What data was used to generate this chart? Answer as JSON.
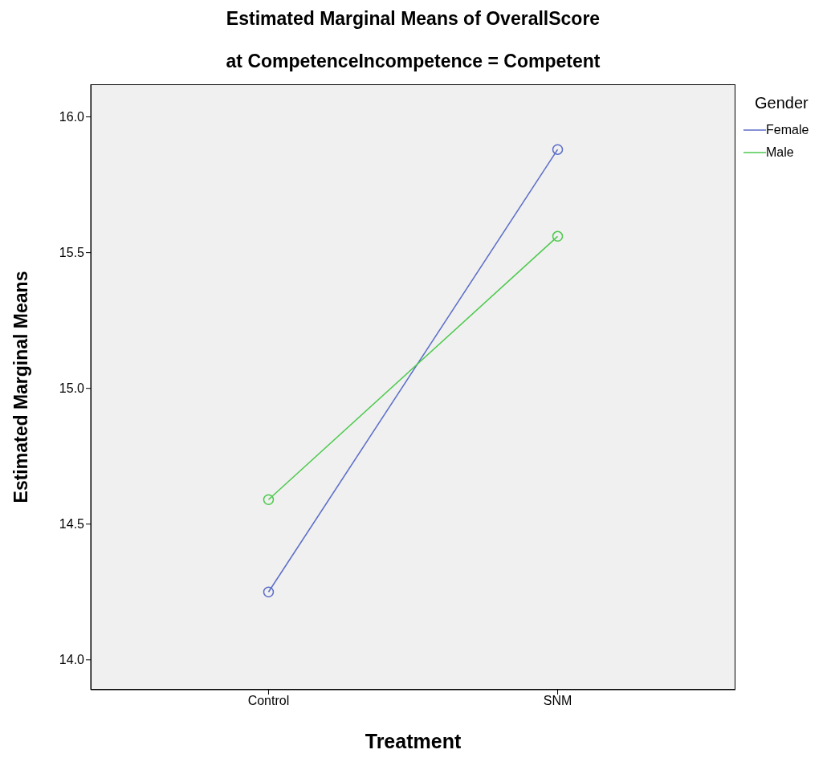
{
  "chart_data": {
    "type": "line",
    "title": "Estimated Marginal Means of OverallScore",
    "subtitle": "at CompetenceIncompetence = Competent",
    "xlabel": "Treatment",
    "ylabel": "Estimated Marginal Means",
    "legend_title": "Gender",
    "categories": [
      "Control",
      "SNM"
    ],
    "series": [
      {
        "name": "Female",
        "color": "#5b6dc8",
        "values": [
          14.25,
          15.88
        ]
      },
      {
        "name": "Male",
        "color": "#4cc94c",
        "values": [
          14.59,
          15.56
        ]
      }
    ],
    "ylim": [
      13.89,
      16.12
    ],
    "yticks": [
      {
        "value": 14,
        "label": "14.0"
      },
      {
        "value": 14.5,
        "label": "14.5"
      },
      {
        "value": 15,
        "label": "15.0"
      },
      {
        "value": 15.5,
        "label": "15.5"
      },
      {
        "value": 16,
        "label": "16.0"
      }
    ],
    "grid": false,
    "legend": "top right",
    "marker": "circle",
    "line_style": "solid"
  }
}
